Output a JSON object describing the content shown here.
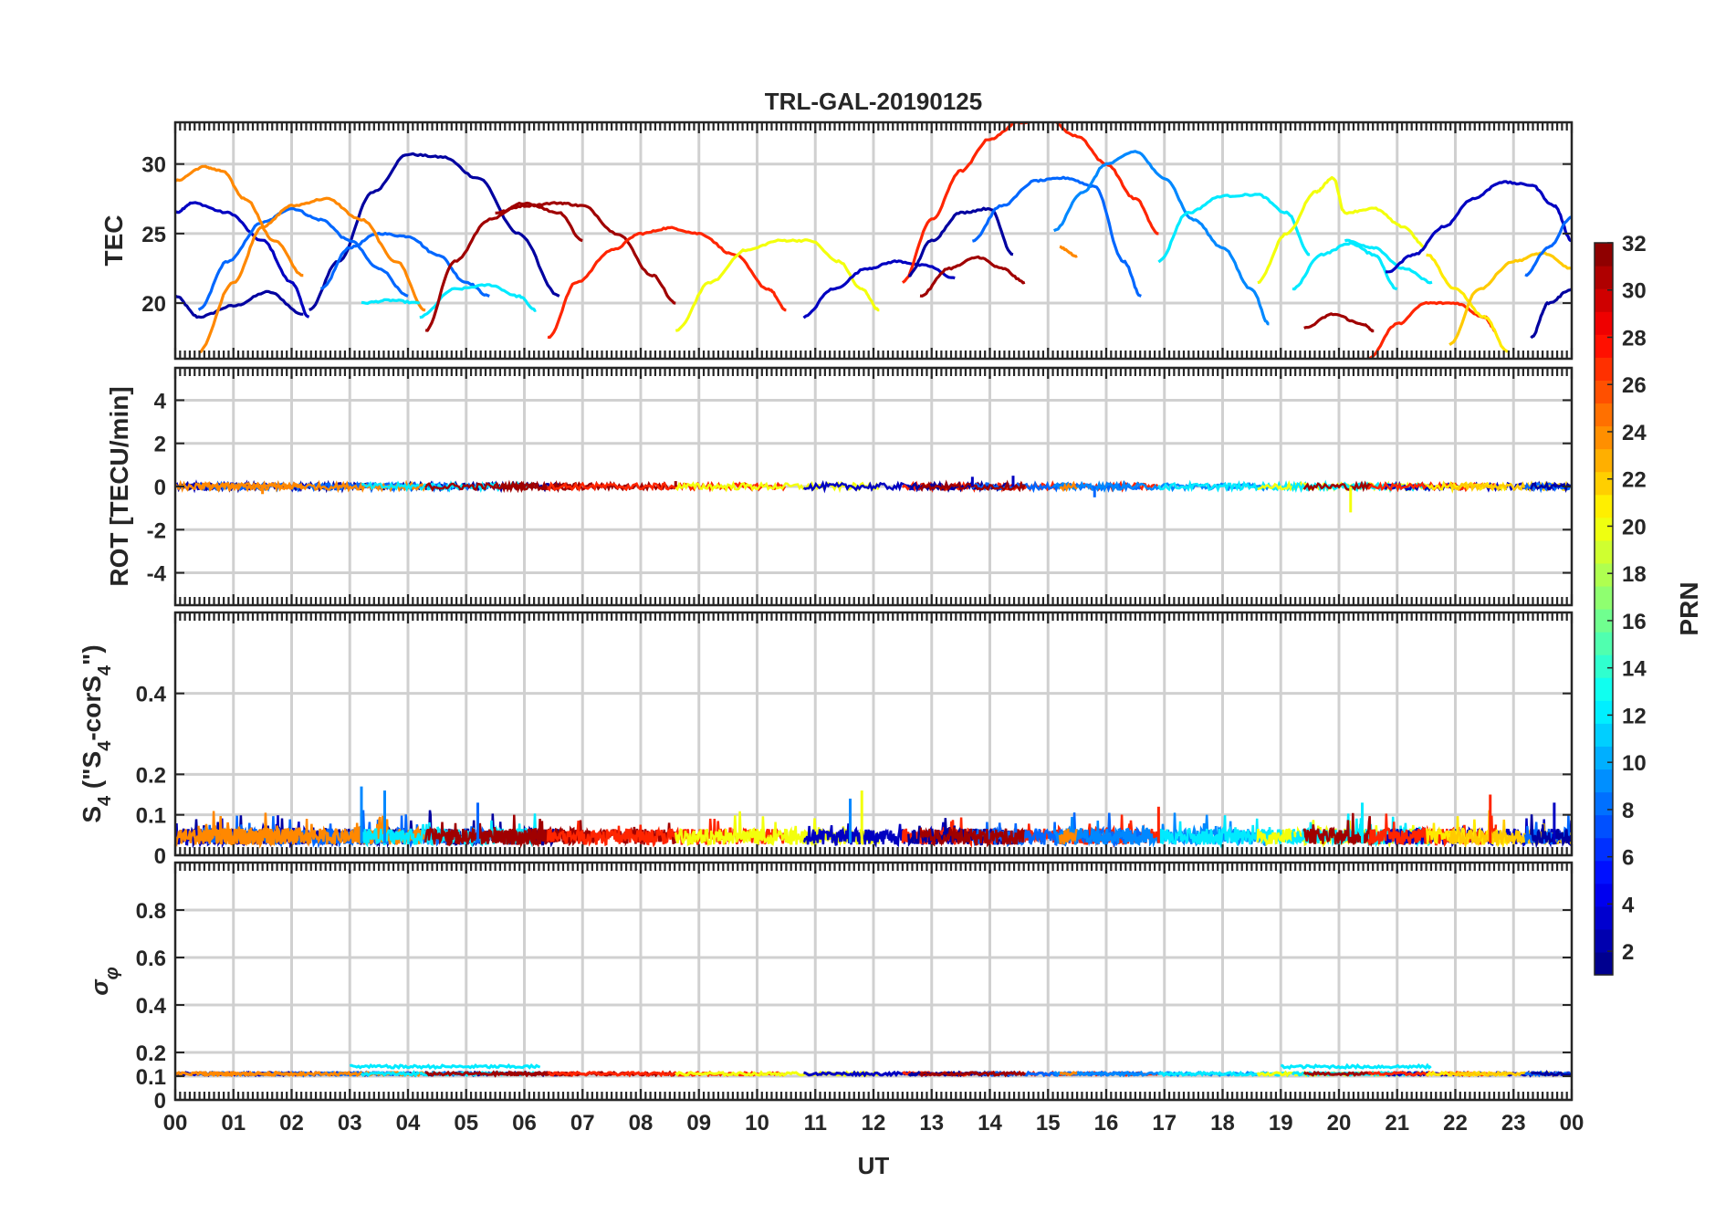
{
  "title": "TRL-GAL-20190125",
  "x_axis": {
    "label": "UT",
    "tick_labels": [
      "00",
      "01",
      "02",
      "03",
      "04",
      "05",
      "06",
      "07",
      "08",
      "09",
      "10",
      "11",
      "12",
      "13",
      "14",
      "15",
      "16",
      "17",
      "18",
      "19",
      "20",
      "21",
      "22",
      "23",
      "00"
    ]
  },
  "colorbar": {
    "label": "PRN",
    "range": [
      1,
      32
    ],
    "tick_labels": [
      "2",
      "4",
      "6",
      "8",
      "10",
      "12",
      "14",
      "16",
      "18",
      "20",
      "22",
      "24",
      "26",
      "28",
      "30",
      "32"
    ],
    "colormap": "jet"
  },
  "chart_data": [
    {
      "type": "line",
      "panel": "TEC",
      "ylabel": "TEC",
      "ylim": [
        16,
        33
      ],
      "ytick_labels": [
        "20",
        "25",
        "30"
      ],
      "xlim": [
        0,
        24
      ],
      "grid": true,
      "series": [
        {
          "prn": 2,
          "x": [
            0,
            0.4,
            1.0,
            1.6,
            2.2
          ],
          "y": [
            20.5,
            19,
            19.8,
            20.8,
            19.2
          ]
        },
        {
          "prn": 3,
          "x": [
            0,
            0.3,
            0.9,
            1.5,
            2.0,
            2.3
          ],
          "y": [
            26.5,
            27.2,
            26.5,
            24.5,
            21.5,
            19
          ]
        },
        {
          "prn": 2,
          "x": [
            2.3,
            2.8,
            3.4,
            4.0,
            4.6,
            5.2,
            5.9,
            6.6
          ],
          "y": [
            19.5,
            23,
            28,
            30.7,
            30.5,
            29,
            25,
            20.5
          ]
        },
        {
          "prn": 8,
          "x": [
            0.4,
            0.9,
            1.5,
            2.0,
            2.5,
            3.0,
            3.5,
            4.0
          ],
          "y": [
            19.5,
            23,
            25.8,
            26.8,
            26,
            24.5,
            22.5,
            20.5
          ]
        },
        {
          "prn": 8,
          "x": [
            2.5,
            3.0,
            3.5,
            4.0,
            4.5,
            5.0,
            5.4
          ],
          "y": [
            21,
            24,
            25,
            24.8,
            23.5,
            21.5,
            20.5
          ]
        },
        {
          "prn": 24,
          "x": [
            0,
            0.5,
            0.8,
            1.2,
            1.7,
            2.2
          ],
          "y": [
            28.8,
            29.8,
            29.5,
            27.5,
            24.5,
            22
          ]
        },
        {
          "prn": 24,
          "x": [
            0.4,
            1.0,
            1.5,
            2.0,
            2.6,
            3.2,
            3.8,
            4.3
          ],
          "y": [
            16.5,
            21.5,
            25.5,
            27,
            27.5,
            26,
            23,
            19.5
          ]
        },
        {
          "prn": 12,
          "x": [
            3.2,
            3.7,
            4.2
          ],
          "y": [
            20,
            20.2,
            20
          ]
        },
        {
          "prn": 12,
          "x": [
            4.2,
            4.8,
            5.4,
            5.9,
            6.2
          ],
          "y": [
            19,
            21,
            21.3,
            20.5,
            19.5
          ]
        },
        {
          "prn": 31,
          "x": [
            4.3,
            4.8,
            5.4,
            6.0,
            6.6,
            7.0
          ],
          "y": [
            18,
            23,
            26,
            27.2,
            26.5,
            24.5
          ]
        },
        {
          "prn": 31,
          "x": [
            5.5,
            6.0,
            6.6,
            7.0,
            7.6,
            8.2,
            8.6
          ],
          "y": [
            26.5,
            27,
            27.2,
            27,
            25,
            22,
            20
          ]
        },
        {
          "prn": 27,
          "x": [
            6.4,
            6.9,
            7.5,
            8.0,
            8.5,
            9.0,
            9.6,
            10.2,
            10.5
          ],
          "y": [
            17.5,
            21.5,
            23.8,
            25,
            25.4,
            25,
            23.5,
            21,
            19.5
          ]
        },
        {
          "prn": 20,
          "x": [
            8.6,
            9.2,
            9.8,
            10.4,
            10.9,
            11.4,
            11.8,
            12.1
          ],
          "y": [
            18,
            21.5,
            23.8,
            24.5,
            24.5,
            23,
            21,
            19.5
          ]
        },
        {
          "prn": 3,
          "x": [
            10.8,
            11.3,
            11.9,
            12.4,
            12.9,
            13.4
          ],
          "y": [
            19,
            21,
            22.5,
            23,
            22.7,
            21.8
          ]
        },
        {
          "prn": 27,
          "x": [
            12.5,
            13.0,
            13.5,
            14.0,
            14.5,
            15.0,
            15.5,
            16.0,
            16.5,
            16.9
          ],
          "y": [
            21.5,
            26,
            29.5,
            31.8,
            33,
            33.2,
            32,
            30,
            27.5,
            25
          ]
        },
        {
          "prn": 2,
          "x": [
            12.6,
            13.0,
            13.5,
            14.0,
            14.4
          ],
          "y": [
            22,
            24.5,
            26.5,
            26.8,
            23.5
          ]
        },
        {
          "prn": 8,
          "x": [
            13.7,
            14.2,
            14.8,
            15.3,
            15.8,
            16.3,
            16.6
          ],
          "y": [
            24.5,
            27,
            28.8,
            29,
            28.4,
            23,
            20.5
          ]
        },
        {
          "prn": 31,
          "x": [
            12.8,
            13.3,
            13.8,
            14.2,
            14.6
          ],
          "y": [
            20.5,
            22.5,
            23.3,
            22.5,
            21.5
          ]
        },
        {
          "prn": 9,
          "x": [
            15.1,
            15.6,
            16.0,
            16.5,
            17.0,
            17.5,
            18.0,
            18.5,
            18.8
          ],
          "y": [
            25.2,
            28,
            30,
            30.9,
            29,
            26,
            24,
            21,
            18.5
          ]
        },
        {
          "prn": 24,
          "x": [
            15.2,
            15.5
          ],
          "y": [
            24,
            23.4
          ]
        },
        {
          "prn": 12,
          "x": [
            16.9,
            17.4,
            18.0,
            18.6,
            19.1,
            19.5
          ],
          "y": [
            23,
            26.5,
            27.7,
            27.8,
            26.5,
            23.5
          ]
        },
        {
          "prn": 20,
          "x": [
            18.6,
            19.1,
            19.6,
            19.9,
            20.1,
            20.6,
            21.1,
            21.5
          ],
          "y": [
            21.5,
            25,
            28,
            29,
            26.5,
            26.8,
            25.5,
            24
          ]
        },
        {
          "prn": 12,
          "x": [
            19.2,
            19.7,
            20.2,
            20.6,
            21.0
          ],
          "y": [
            21,
            23.5,
            24.3,
            23.5,
            21
          ]
        },
        {
          "prn": 12,
          "x": [
            20.1,
            20.6,
            21.1,
            21.6
          ],
          "y": [
            24.5,
            24,
            22.5,
            21.5
          ]
        },
        {
          "prn": 31,
          "x": [
            19.4,
            19.9,
            20.4,
            20.6
          ],
          "y": [
            18.2,
            19.2,
            18.5,
            18
          ]
        },
        {
          "prn": 3,
          "x": [
            20.8,
            21.3,
            21.8,
            22.3,
            22.8,
            23.3,
            23.7,
            24.0
          ],
          "y": [
            22.2,
            23.5,
            25.5,
            27.5,
            28.7,
            28.5,
            27,
            24.5
          ]
        },
        {
          "prn": 27,
          "x": [
            20.5,
            21.0,
            21.5,
            22.0,
            22.5,
            22.7
          ],
          "y": [
            16,
            18.5,
            20,
            20,
            19,
            18
          ]
        },
        {
          "prn": 21,
          "x": [
            21.5,
            22.0,
            22.5,
            22.9
          ],
          "y": [
            23.5,
            21,
            19,
            16.5
          ]
        },
        {
          "prn": 22,
          "x": [
            21.9,
            22.4,
            23.0,
            23.5,
            24.0
          ],
          "y": [
            17,
            21,
            23,
            23.6,
            22.5
          ]
        },
        {
          "prn": 8,
          "x": [
            23.2,
            23.6,
            24.0
          ],
          "y": [
            22,
            24,
            26.2
          ]
        },
        {
          "prn": 2,
          "x": [
            23.3,
            23.6,
            24.0
          ],
          "y": [
            17.5,
            20,
            21
          ]
        }
      ]
    },
    {
      "type": "line",
      "panel": "ROT",
      "ylabel": "ROT [TECU/min]",
      "ylim": [
        -5.5,
        5.5
      ],
      "ytick_labels": [
        "-4",
        "-2",
        "0",
        "2",
        "4"
      ],
      "xlim": [
        0,
        24
      ],
      "grid": true,
      "baseline": 0,
      "noise_amplitude": 0.15,
      "spikes": [
        {
          "x": 13.7,
          "y": 0.45,
          "prn": 3
        },
        {
          "x": 14.4,
          "y": 0.5,
          "prn": 3
        },
        {
          "x": 15.8,
          "y": -0.5,
          "prn": 8
        },
        {
          "x": 20.2,
          "y": -1.2,
          "prn": 20
        },
        {
          "x": 1.5,
          "y": -0.35,
          "prn": 24
        },
        {
          "x": 8.6,
          "y": 0.25,
          "prn": 31
        }
      ]
    },
    {
      "type": "line",
      "panel": "S4",
      "ylabel": "S4 (\"S4-corS4\")",
      "ylim": [
        0,
        0.6
      ],
      "ytick_labels": [
        "0",
        "0.1",
        "0.2",
        "0.4"
      ],
      "xlim": [
        0,
        24
      ],
      "grid": true,
      "baseline_level": 0.04,
      "peaks": [
        {
          "x": 3.2,
          "y": 0.17,
          "prn": 9
        },
        {
          "x": 3.6,
          "y": 0.16,
          "prn": 9
        },
        {
          "x": 5.2,
          "y": 0.13,
          "prn": 8
        },
        {
          "x": 11.8,
          "y": 0.16,
          "prn": 20
        },
        {
          "x": 11.6,
          "y": 0.14,
          "prn": 9
        },
        {
          "x": 16.9,
          "y": 0.12,
          "prn": 27
        },
        {
          "x": 20.4,
          "y": 0.13,
          "prn": 12
        },
        {
          "x": 22.6,
          "y": 0.15,
          "prn": 27
        },
        {
          "x": 23.7,
          "y": 0.13,
          "prn": 3
        }
      ]
    },
    {
      "type": "line",
      "panel": "sigma_phi",
      "ylabel": "σφ",
      "ylim": [
        0,
        1
      ],
      "ytick_labels": [
        "0",
        "0.1",
        "0.2",
        "0.4",
        "0.6",
        "0.8"
      ],
      "xlim": [
        0,
        24
      ],
      "grid": true,
      "baseline_level": 0.11,
      "bumps": [
        {
          "x0": 3.0,
          "x1": 6.3,
          "y": 0.14,
          "prn": 12
        },
        {
          "x0": 19.0,
          "x1": 21.6,
          "y": 0.14,
          "prn": 12
        }
      ]
    }
  ]
}
